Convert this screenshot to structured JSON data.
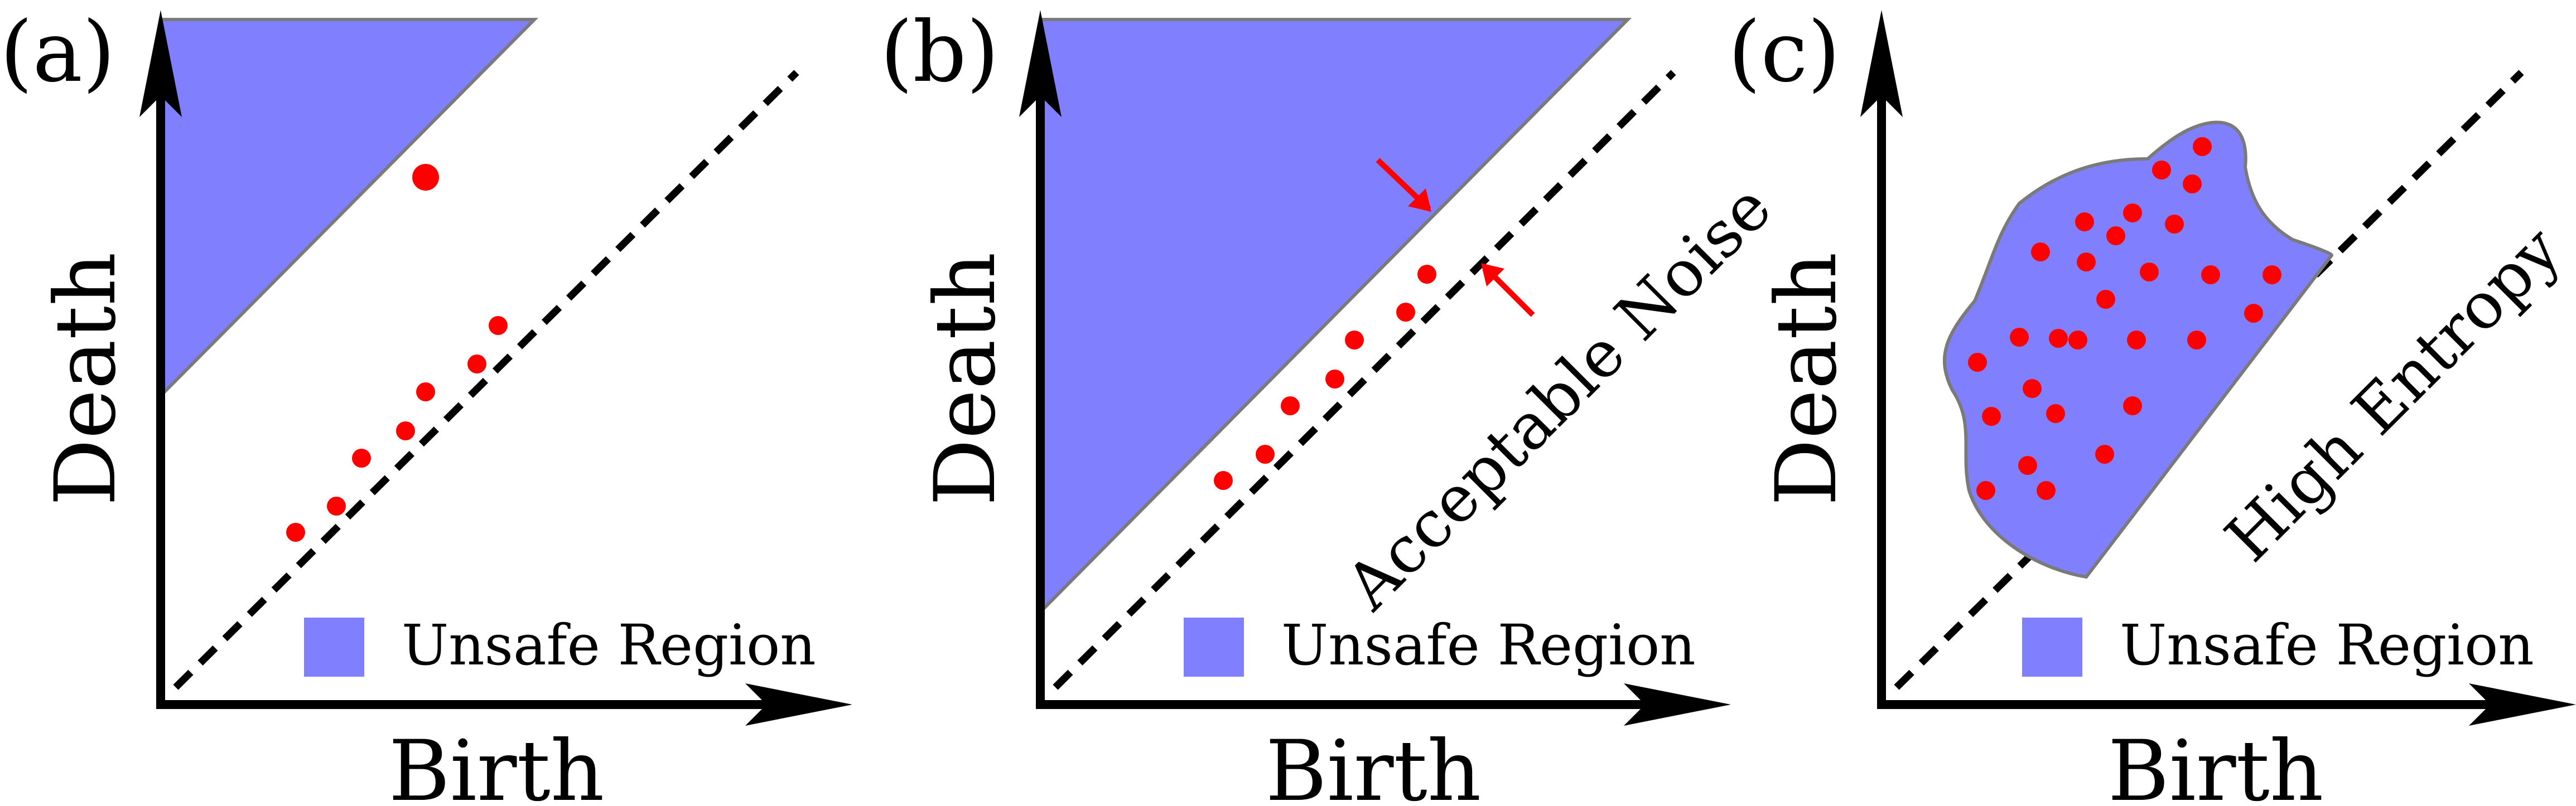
{
  "colors": {
    "unsafe_fill": "#8080ff",
    "unsafe_stroke": "#7a7a7a",
    "point": "#ff0000",
    "axis": "#000000",
    "diagonal": "#000000"
  },
  "panels": [
    {
      "label": "(a)",
      "x_axis_label": "Birth",
      "y_axis_label": "Death",
      "legend_label": "Unsafe Region",
      "diagonal_annotation": ""
    },
    {
      "label": "(b)",
      "x_axis_label": "Birth",
      "y_axis_label": "Death",
      "legend_label": "Unsafe Region",
      "diagonal_annotation": "Acceptable Noise"
    },
    {
      "label": "(c)",
      "x_axis_label": "Birth",
      "y_axis_label": "Death",
      "legend_label": "Unsafe Region",
      "diagonal_annotation": "High Entropy"
    }
  ]
}
